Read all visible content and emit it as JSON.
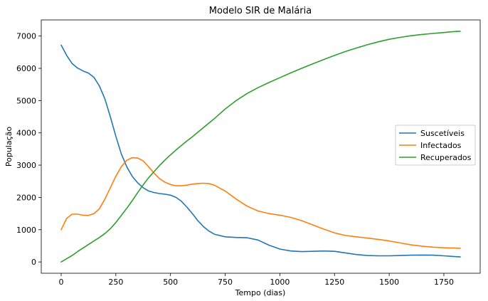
{
  "chart_data": {
    "type": "line",
    "title": "Modelo SIR de Malária",
    "xlabel": "Tempo (dias)",
    "ylabel": "População",
    "xlim": [
      -91,
      1916
    ],
    "ylim": [
      -350,
      7500
    ],
    "xticks": [
      0,
      250,
      500,
      750,
      1000,
      1250,
      1500,
      1750
    ],
    "yticks": [
      0,
      1000,
      2000,
      3000,
      4000,
      5000,
      6000,
      7000
    ],
    "grid": false,
    "legend_position": "center-right",
    "series": [
      {
        "name": "Suscetíveis",
        "color": "#1f77b4",
        "x": [
          0,
          25,
          50,
          75,
          100,
          125,
          150,
          175,
          200,
          225,
          250,
          275,
          300,
          325,
          350,
          375,
          400,
          425,
          450,
          475,
          500,
          525,
          550,
          575,
          600,
          625,
          650,
          675,
          700,
          750,
          800,
          850,
          900,
          950,
          1000,
          1050,
          1100,
          1150,
          1200,
          1250,
          1300,
          1350,
          1400,
          1450,
          1500,
          1550,
          1600,
          1650,
          1700,
          1750,
          1800,
          1825
        ],
        "y": [
          6720,
          6400,
          6150,
          6010,
          5920,
          5850,
          5720,
          5450,
          5050,
          4500,
          3900,
          3350,
          2950,
          2650,
          2450,
          2300,
          2200,
          2150,
          2120,
          2100,
          2070,
          2000,
          1880,
          1700,
          1500,
          1280,
          1100,
          960,
          860,
          780,
          760,
          750,
          680,
          520,
          400,
          340,
          320,
          330,
          340,
          330,
          280,
          230,
          200,
          190,
          190,
          200,
          210,
          215,
          210,
          190,
          165,
          155
        ]
      },
      {
        "name": "Infectados",
        "color": "#ff7f0e",
        "x": [
          0,
          25,
          50,
          75,
          100,
          125,
          150,
          175,
          200,
          225,
          250,
          275,
          300,
          325,
          350,
          375,
          400,
          425,
          450,
          475,
          500,
          525,
          550,
          575,
          600,
          625,
          650,
          675,
          700,
          750,
          800,
          850,
          900,
          950,
          1000,
          1050,
          1100,
          1150,
          1200,
          1250,
          1300,
          1350,
          1400,
          1450,
          1500,
          1550,
          1600,
          1650,
          1700,
          1750,
          1800,
          1825
        ],
        "y": [
          1000,
          1350,
          1480,
          1480,
          1450,
          1440,
          1500,
          1650,
          1950,
          2300,
          2650,
          2950,
          3150,
          3230,
          3220,
          3130,
          2950,
          2750,
          2580,
          2470,
          2400,
          2360,
          2360,
          2380,
          2410,
          2430,
          2440,
          2430,
          2380,
          2200,
          1950,
          1730,
          1580,
          1500,
          1450,
          1380,
          1280,
          1150,
          1020,
          900,
          820,
          780,
          740,
          700,
          650,
          590,
          530,
          490,
          460,
          440,
          430,
          425
        ]
      },
      {
        "name": "Recuperados",
        "color": "#2ca02c",
        "x": [
          0,
          25,
          50,
          75,
          100,
          125,
          150,
          175,
          200,
          225,
          250,
          275,
          300,
          325,
          350,
          375,
          400,
          425,
          450,
          475,
          500,
          525,
          550,
          575,
          600,
          625,
          650,
          675,
          700,
          750,
          800,
          850,
          900,
          950,
          1000,
          1050,
          1100,
          1150,
          1200,
          1250,
          1300,
          1350,
          1400,
          1450,
          1500,
          1550,
          1600,
          1650,
          1700,
          1750,
          1800,
          1825
        ],
        "y": [
          0,
          100,
          200,
          320,
          430,
          540,
          650,
          760,
          880,
          1030,
          1220,
          1440,
          1660,
          1900,
          2150,
          2390,
          2610,
          2800,
          2990,
          3160,
          3320,
          3470,
          3610,
          3750,
          3880,
          4020,
          4160,
          4300,
          4440,
          4740,
          5000,
          5220,
          5400,
          5560,
          5710,
          5860,
          6000,
          6140,
          6270,
          6400,
          6520,
          6630,
          6730,
          6820,
          6900,
          6960,
          7010,
          7050,
          7080,
          7110,
          7140,
          7150
        ]
      }
    ]
  }
}
